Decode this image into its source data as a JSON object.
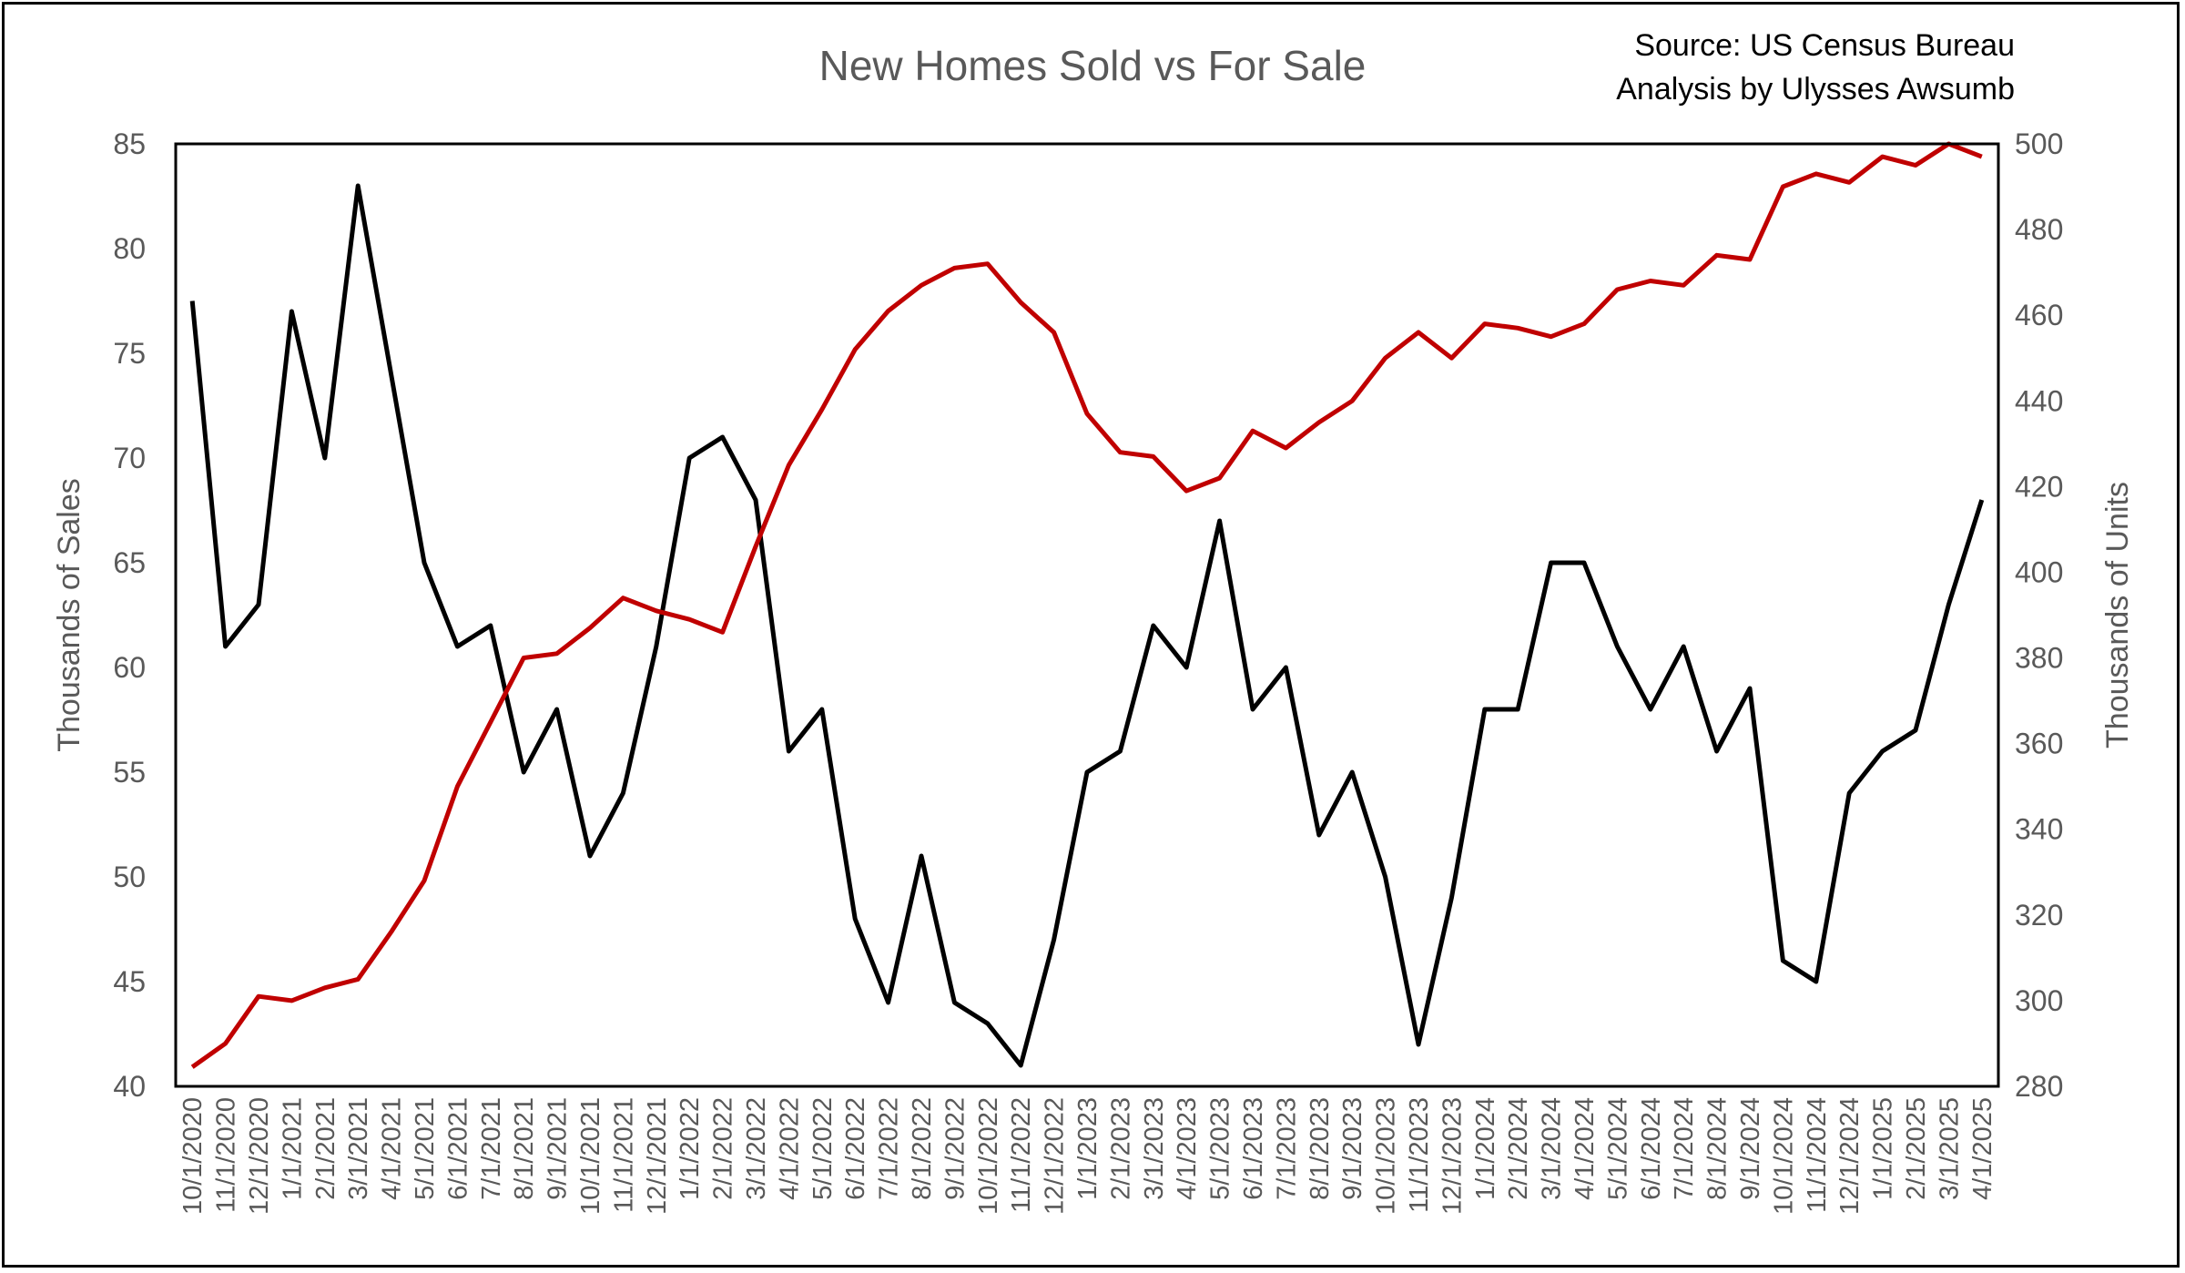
{
  "chart_data": {
    "type": "line",
    "title": "New Homes Sold vs For Sale",
    "source_lines": [
      "Source: US Census Bureau",
      "Analysis by Ulysses Awsumb"
    ],
    "ylabel": "Thousands of Sales",
    "y2label": "Thousands of Units",
    "ylim": [
      40,
      85
    ],
    "y2lim": [
      280,
      500
    ],
    "yticks": [
      40,
      45,
      50,
      55,
      60,
      65,
      70,
      75,
      80,
      85
    ],
    "y2ticks": [
      280,
      300,
      320,
      340,
      360,
      380,
      400,
      420,
      440,
      460,
      480,
      500
    ],
    "grid": false,
    "x": [
      "10/1/2020",
      "11/1/2020",
      "12/1/2020",
      "1/1/2021",
      "2/1/2021",
      "3/1/2021",
      "4/1/2021",
      "5/1/2021",
      "6/1/2021",
      "7/1/2021",
      "8/1/2021",
      "9/1/2021",
      "10/1/2021",
      "11/1/2021",
      "12/1/2021",
      "1/1/2022",
      "2/1/2022",
      "3/1/2022",
      "4/1/2022",
      "5/1/2022",
      "6/1/2022",
      "7/1/2022",
      "8/1/2022",
      "9/1/2022",
      "10/1/2022",
      "11/1/2022",
      "12/1/2022",
      "1/1/2023",
      "2/1/2023",
      "3/1/2023",
      "4/1/2023",
      "5/1/2023",
      "6/1/2023",
      "7/1/2023",
      "8/1/2023",
      "9/1/2023",
      "10/1/2023",
      "11/1/2023",
      "12/1/2023",
      "1/1/2024",
      "2/1/2024",
      "3/1/2024",
      "4/1/2024",
      "5/1/2024",
      "6/1/2024",
      "7/1/2024",
      "8/1/2024",
      "9/1/2024",
      "10/1/2024",
      "11/1/2024",
      "12/1/2024",
      "1/1/2025",
      "2/1/2025",
      "3/1/2025",
      "4/1/2025"
    ],
    "series": [
      {
        "axis": "left",
        "color": "#000000",
        "values": [
          77.5,
          61,
          63,
          77,
          70,
          83,
          74,
          65,
          61,
          62,
          55,
          58,
          51,
          54,
          61,
          70,
          71,
          68,
          56,
          58,
          48,
          44,
          51,
          44,
          43,
          41,
          47,
          55,
          56,
          62,
          60,
          67,
          58,
          60,
          52,
          55,
          50,
          42,
          49,
          58,
          58,
          65,
          65,
          61,
          58,
          61,
          56,
          59,
          46,
          45,
          54,
          56,
          57,
          63,
          68
        ]
      },
      {
        "axis": "right",
        "color": "#C00000",
        "values": [
          284.5,
          290,
          301,
          300,
          303,
          305,
          316,
          328,
          350,
          365,
          380,
          381,
          387,
          394,
          391,
          389,
          386,
          406,
          425,
          438,
          452,
          461,
          467,
          471,
          472,
          463,
          456,
          437,
          428,
          427,
          419,
          422,
          433,
          429,
          435,
          440,
          450,
          456,
          450,
          458,
          457,
          455,
          458,
          466,
          468,
          467,
          474,
          473,
          490,
          493,
          491,
          497,
          495,
          500,
          497
        ]
      }
    ]
  }
}
